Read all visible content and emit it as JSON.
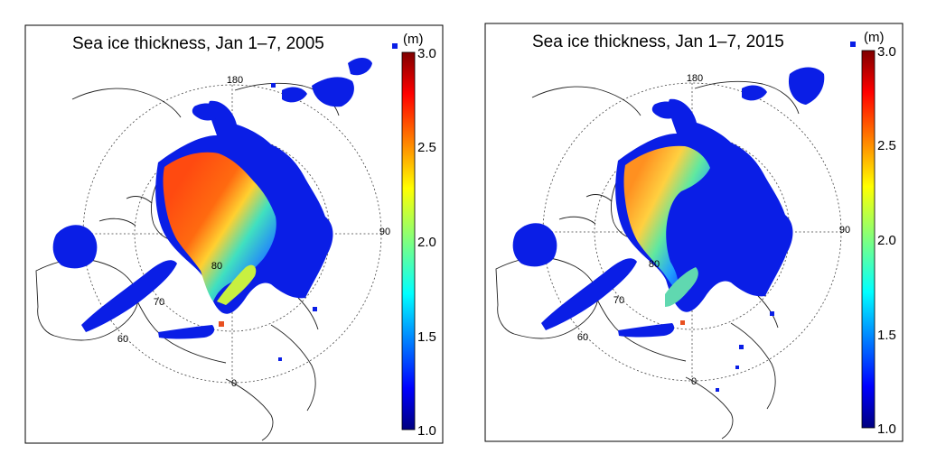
{
  "panels": [
    {
      "title": "Sea ice thickness, Jan 1–7, 2005",
      "labels": {
        "lon_180": "180",
        "lon_90": "90",
        "lon_0": "0",
        "lat_80": "80",
        "lat_70": "70",
        "lat_60": "60"
      },
      "colorbar": {
        "unit": "(m)",
        "ticks": [
          "3.0",
          "2.5",
          "2.0",
          "1.5",
          "1.0"
        ]
      }
    },
    {
      "title": "Sea ice thickness, Jan 1–7, 2015",
      "labels": {
        "lon_180": "180",
        "lon_90": "90",
        "lon_0": "0",
        "lat_80": "80",
        "lat_70": "70",
        "lat_60": "60"
      },
      "colorbar": {
        "unit": "(m)",
        "ticks": [
          "3.0",
          "2.5",
          "2.0",
          "1.5",
          "1.0"
        ]
      }
    }
  ],
  "colorbar_range": [
    1.0,
    3.0
  ],
  "colors": {
    "thin_ice": "#0a1ee6",
    "thick_ice": "#e03a10",
    "colormap": [
      "#00007f",
      "#0000ff",
      "#007fff",
      "#00ffff",
      "#7fff7f",
      "#ffff00",
      "#ff7f00",
      "#ff0000",
      "#7f0000"
    ]
  }
}
